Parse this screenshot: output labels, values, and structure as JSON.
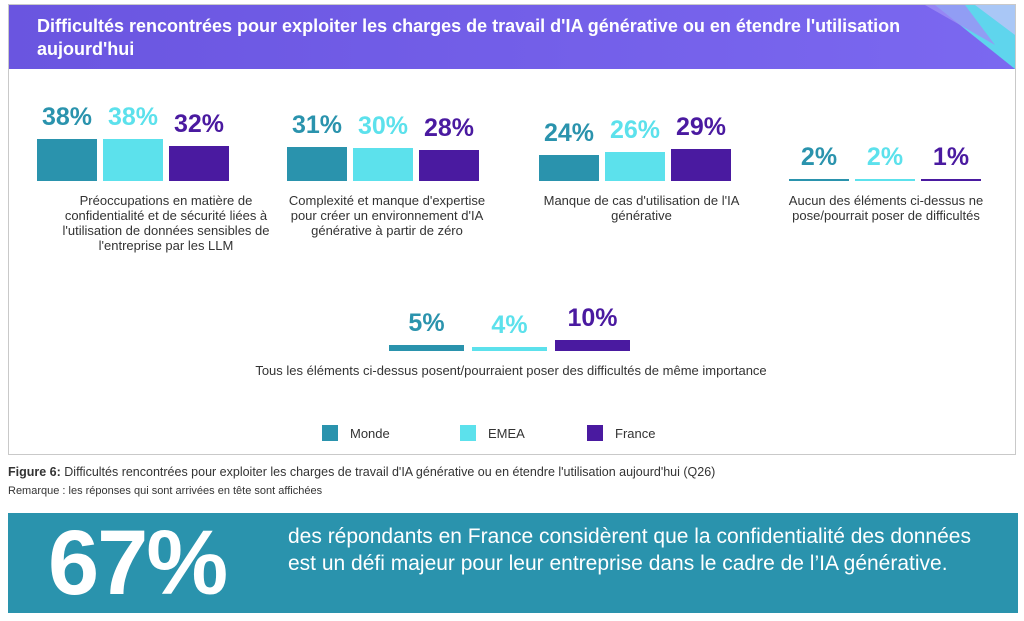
{
  "header": {
    "title": "Difficultés rencontrées pour exploiter les charges de travail d'IA générative ou en étendre l'utilisation aujourd'hui"
  },
  "colors": {
    "monde": "#2a93ad",
    "emea": "#5ce1ec",
    "france": "#4a1aa0",
    "header_bg": "#7b68f0",
    "callout_bg": "#2a93ad"
  },
  "chart_data": {
    "type": "bar",
    "series": [
      {
        "name": "Monde",
        "values": [
          38,
          31,
          24,
          2,
          5
        ]
      },
      {
        "name": "EMEA",
        "values": [
          38,
          30,
          26,
          2,
          4
        ]
      },
      {
        "name": "France",
        "values": [
          32,
          28,
          29,
          1,
          10
        ]
      }
    ],
    "categories": [
      "Préoccupations en matière de confidentialité et de sécurité liées à l'utilisation de données sensibles de l'entreprise par les LLM",
      "Complexité et manque d'expertise pour créer un environnement d'IA générative à partir de zéro",
      "Manque de cas d'utilisation de l'IA générative",
      "Aucun des éléments ci-dessus ne pose/pourrait poser de difficultés",
      "Tous les éléments ci-dessus posent/pourraient poser des difficultés de même importance"
    ],
    "value_labels": [
      [
        "38%",
        "38%",
        "32%"
      ],
      [
        "31%",
        "30%",
        "28%"
      ],
      [
        "24%",
        "26%",
        "29%"
      ],
      [
        "2%",
        "2%",
        "1%"
      ],
      [
        "5%",
        "4%",
        "10%"
      ]
    ],
    "legend": [
      "Monde",
      "EMEA",
      "France"
    ],
    "legend_position": "bottom",
    "grid": false
  },
  "figure": {
    "label": "Figure 6:",
    "caption": " Difficultés rencontrées pour exploiter les charges de travail d'IA générative ou en étendre l'utilisation aujourd'hui (Q26)",
    "note": "Remarque : les réponses qui sont arrivées en tête sont affichées"
  },
  "callout": {
    "big_number": "67%",
    "text": "des répondants en France considèrent que la confidentialité des données est un défi majeur pour leur entreprise dans le cadre de l’IA générative."
  }
}
